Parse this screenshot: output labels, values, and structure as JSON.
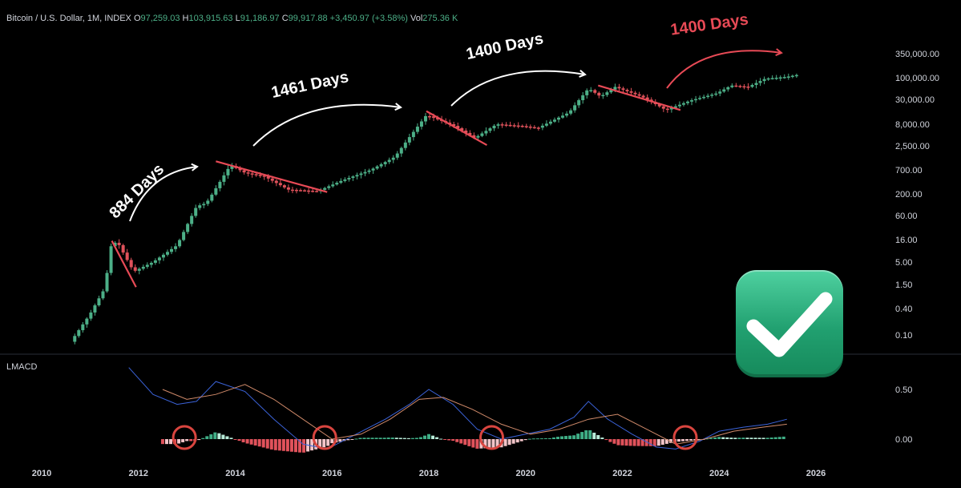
{
  "header": {
    "symbol": "Bitcoin / U.S. Dollar, 1M, INDEX",
    "open_label": "O",
    "open": "97,259.03",
    "high_label": "H",
    "high": "103,915.63",
    "low_label": "L",
    "low": "91,186.97",
    "close_label": "C",
    "close": "99,917.88",
    "change": "+3,450.97 (+3.58%)",
    "vol_label": "Vol",
    "vol": "275.36 K"
  },
  "indicator": {
    "label": "LMACD"
  },
  "colors": {
    "up": "#4caf87",
    "down": "#e0525b",
    "trend": "#e84a56",
    "annotation_red": "#e84a56",
    "circle": "#d9453f",
    "macd_line": "#3b63d9",
    "signal_line": "#d08a6a"
  },
  "icons": {
    "badge": "check-mark-icon"
  },
  "chart_data": [
    {
      "type": "line",
      "title": "",
      "scale": "log",
      "x_ticks": [
        "2010",
        "2012",
        "2014",
        "2016",
        "2018",
        "2020",
        "2022",
        "2024",
        "2026"
      ],
      "y_ticks": [
        "350,000.00",
        "100,000.00",
        "30,000.00",
        "8,000.00",
        "2,500.00",
        "700.00",
        "200.00",
        "60.00",
        "16.00",
        "5.00",
        "1.50",
        "0.40",
        "0.10"
      ],
      "series": [
        {
          "name": "",
          "x": [
            2010.6,
            2011.0,
            2011.3,
            2011.45,
            2011.6,
            2011.9,
            2012.3,
            2012.8,
            2013.2,
            2013.4,
            2013.9,
            2014.2,
            2014.6,
            2015.1,
            2015.7,
            2016.2,
            2016.8,
            2017.3,
            2017.6,
            2017.95,
            2018.5,
            2018.95,
            2019.4,
            2019.95,
            2020.25,
            2020.9,
            2021.3,
            2021.55,
            2021.85,
            2022.4,
            2022.9,
            2023.4,
            2023.95,
            2024.25,
            2024.6,
            2024.95,
            2025.4,
            2025.6
          ],
          "y": [
            0.07,
            0.3,
            1.2,
            15,
            12,
            3,
            5,
            12,
            100,
            120,
            900,
            600,
            500,
            250,
            230,
            400,
            700,
            1400,
            4000,
            13000,
            7500,
            3800,
            8000,
            7200,
            6500,
            15000,
            55000,
            35000,
            60000,
            35000,
            17000,
            28000,
            42000,
            65000,
            60000,
            95000,
            105000,
            115000
          ]
        }
      ],
      "annotations": [
        "884 Days",
        "1461 Days",
        "1400 Days",
        "1400 Days"
      ]
    },
    {
      "type": "line",
      "title": "LMACD",
      "y_ticks": [
        "0.50",
        "0.00"
      ],
      "x_ticks": [
        "2010",
        "2012",
        "2014",
        "2016",
        "2018",
        "2020",
        "2022",
        "2024",
        "2026"
      ],
      "series": [
        {
          "name": "",
          "x": [
            2011.8,
            2012.3,
            2012.8,
            2013.2,
            2013.6,
            2014.2,
            2014.8,
            2015.4,
            2015.9,
            2016.5,
            2017.1,
            2017.6,
            2018.0,
            2018.5,
            2019.0,
            2019.5,
            2020.0,
            2020.5,
            2021.0,
            2021.3,
            2021.7,
            2022.2,
            2022.7,
            2023.1,
            2023.6,
            2024.0,
            2024.5,
            2025.0,
            2025.4
          ],
          "y": [
            0.72,
            0.45,
            0.35,
            0.38,
            0.58,
            0.48,
            0.2,
            -0.05,
            -0.1,
            0.05,
            0.2,
            0.35,
            0.5,
            0.35,
            0.1,
            0.0,
            0.05,
            0.1,
            0.22,
            0.38,
            0.2,
            0.05,
            -0.08,
            -0.1,
            -0.02,
            0.08,
            0.12,
            0.15,
            0.2
          ]
        },
        {
          "name": "",
          "x": [
            2012.5,
            2013.0,
            2013.6,
            2014.2,
            2014.8,
            2015.4,
            2016.0,
            2016.6,
            2017.2,
            2017.8,
            2018.3,
            2018.9,
            2019.5,
            2020.1,
            2020.7,
            2021.3,
            2021.9,
            2022.5,
            2023.1,
            2023.7,
            2024.3,
            2024.9,
            2025.4
          ],
          "y": [
            0.5,
            0.4,
            0.45,
            0.55,
            0.4,
            0.2,
            0.0,
            0.05,
            0.2,
            0.4,
            0.42,
            0.3,
            0.15,
            0.05,
            0.1,
            0.2,
            0.25,
            0.1,
            -0.05,
            0.0,
            0.08,
            0.12,
            0.15
          ]
        }
      ]
    }
  ]
}
